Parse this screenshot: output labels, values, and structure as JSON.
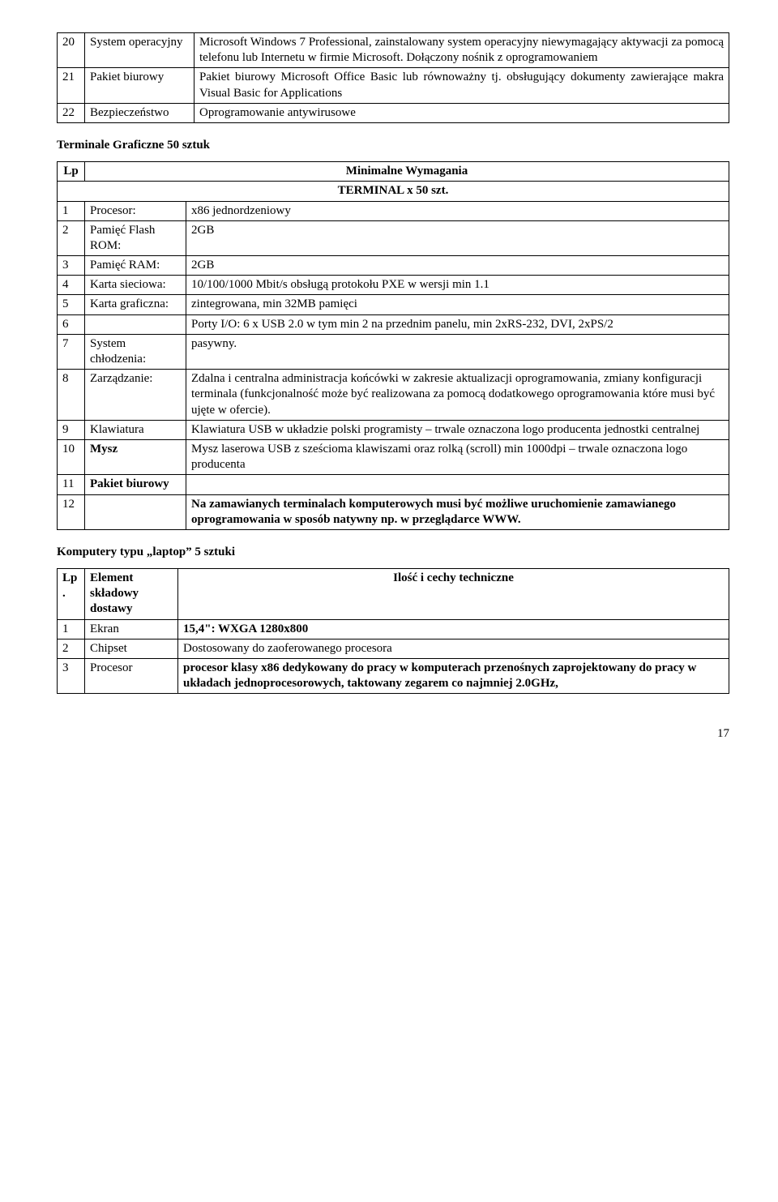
{
  "table1": {
    "rows": [
      {
        "n": "20",
        "name": "System operacyjny",
        "desc": "Microsoft Windows 7 Professional, zainstalowany system operacyjny niewymagający aktywacji za pomocą telefonu lub Internetu w firmie Microsoft. Dołączony nośnik z oprogramowaniem"
      },
      {
        "n": "21",
        "name": "Pakiet biurowy",
        "desc": "Pakiet biurowy Microsoft Office Basic lub równoważny tj. obsługujący dokumenty zawierające makra Visual Basic for Applications"
      },
      {
        "n": "22",
        "name": "Bezpieczeństwo",
        "desc": "Oprogramowanie antywirusowe"
      }
    ]
  },
  "section2_title": "Terminale Graficzne 50 sztuk",
  "table2": {
    "header_lp": "Lp",
    "header_req": "Minimalne Wymagania",
    "subheader": "TERMINAL x 50 szt.",
    "rows": [
      {
        "n": "1",
        "name": "Procesor:",
        "desc": "x86 jednordzeniowy"
      },
      {
        "n": "2",
        "name": "Pamięć Flash ROM:",
        "desc": "2GB"
      },
      {
        "n": "3",
        "name": "Pamięć RAM:",
        "desc": "2GB"
      },
      {
        "n": "4",
        "name": "Karta sieciowa:",
        "desc": "10/100/1000 Mbit/s obsługą protokołu PXE w wersji min 1.1"
      },
      {
        "n": "5",
        "name": "Karta graficzna:",
        "desc": "zintegrowana, min 32MB pamięci"
      },
      {
        "n": "6",
        "name": "",
        "desc": "Porty I/O: 6 x USB 2.0 w tym min 2 na przednim panelu, min 2xRS-232, DVI, 2xPS/2"
      },
      {
        "n": "7",
        "name": "System chłodzenia:",
        "desc": "pasywny."
      },
      {
        "n": "8",
        "name": "Zarządzanie:",
        "desc": "Zdalna i centralna administracja końcówki w zakresie aktualizacji oprogramowania, zmiany konfiguracji terminala (funkcjonalność może być realizowana za pomocą dodatkowego oprogramowania które musi być ujęte w ofercie)."
      },
      {
        "n": "9",
        "name": "Klawiatura",
        "desc": "Klawiatura USB w układzie polski programisty – trwale oznaczona logo producenta jednostki centralnej"
      },
      {
        "n": "10",
        "name": "Mysz",
        "name_bold": true,
        "desc": "Mysz laserowa USB z sześcioma klawiszami oraz rolką (scroll) min 1000dpi – trwale oznaczona logo producenta"
      },
      {
        "n": "11",
        "name": "Pakiet biurowy",
        "name_bold": true,
        "desc": ""
      },
      {
        "n": "12",
        "name": "",
        "desc": "Na zamawianych terminalach komputerowych musi być możliwe uruchomienie zamawianego oprogramowania w sposób natywny np. w przeglądarce WWW.",
        "desc_bold": true
      }
    ]
  },
  "section3_title": "Komputery typu „laptop” 5 sztuki",
  "table3": {
    "header_lp": "Lp.",
    "header_name": "Element składowy dostawy",
    "header_desc": "Ilość i cechy techniczne",
    "rows": [
      {
        "n": "1",
        "name": "Ekran",
        "desc": "15,4\": WXGA 1280x800",
        "desc_bold": true
      },
      {
        "n": "2",
        "name": "Chipset",
        "desc": "Dostosowany do zaoferowanego procesora"
      },
      {
        "n": "3",
        "name": "Procesor",
        "desc": "procesor klasy x86 dedykowany do pracy w komputerach przenośnych zaprojektowany do pracy w układach jednoprocesorowych, taktowany zegarem co najmniej 2.0GHz,",
        "desc_bold": true
      }
    ]
  },
  "page_number": "17"
}
